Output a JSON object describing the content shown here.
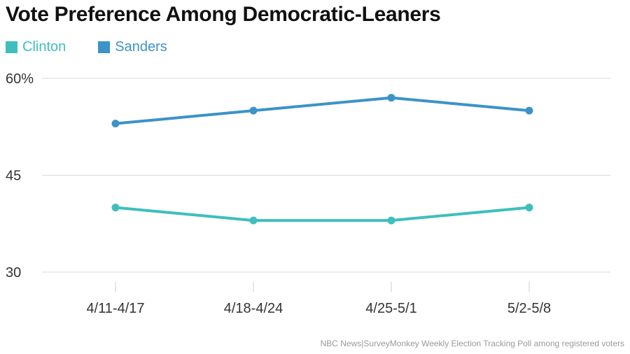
{
  "chart_data": {
    "type": "line",
    "title": "Vote Preference Among Democratic-Leaners",
    "categories": [
      "4/11-4/17",
      "4/18-4/24",
      "4/25-5/1",
      "5/2-5/8"
    ],
    "series": [
      {
        "name": "Clinton",
        "color": "#3dbfbd",
        "values": [
          40,
          38,
          38,
          40
        ]
      },
      {
        "name": "Sanders",
        "color": "#3b93c7",
        "values": [
          53,
          55,
          57,
          55
        ]
      }
    ],
    "ylim": [
      30,
      60
    ],
    "yticks": [
      {
        "value": 60,
        "label": "60%"
      },
      {
        "value": 45,
        "label": "45"
      },
      {
        "value": 30,
        "label": "30"
      }
    ],
    "xlabel": "",
    "ylabel": "",
    "legend_position": "top-left",
    "grid": true,
    "source": "NBC News|SurveyMonkey Weekly Election Tracking Poll among registered voters"
  }
}
